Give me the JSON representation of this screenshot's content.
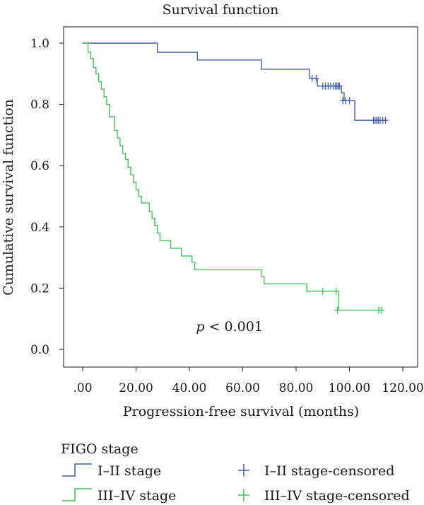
{
  "chart_data": {
    "type": "line",
    "title": "Survival function",
    "xlabel": "Progression-free survival (months)",
    "ylabel": "Cumulative survival function",
    "xlim": [
      0,
      120
    ],
    "ylim": [
      0,
      1
    ],
    "x_ticks": [
      ".00",
      "20.00",
      "40.00",
      "60.00",
      "80.00",
      "100.00",
      "120.00"
    ],
    "x_tick_values": [
      0,
      20,
      40,
      60,
      80,
      100,
      120
    ],
    "y_ticks": [
      "0.0",
      "0.2",
      "0.4",
      "0.6",
      "0.8",
      "1.0"
    ],
    "y_tick_values": [
      0,
      0.2,
      0.4,
      0.6,
      0.8,
      1.0
    ],
    "grid": false,
    "annotation": {
      "p": "p",
      "rest": " < 0.001",
      "x": 55,
      "y": 0.06
    },
    "legend": {
      "title": "FIGO stage",
      "position": "bottom",
      "items": [
        {
          "label": "I–II stage",
          "kind": "step",
          "color": "#3f5fa8"
        },
        {
          "label": "I–II stage-censored",
          "kind": "censor",
          "color": "#3f5fa8"
        },
        {
          "label": "III–IV stage",
          "kind": "step",
          "color": "#44c15a"
        },
        {
          "label": "III–IV stage-censored",
          "kind": "censor",
          "color": "#44c15a"
        }
      ]
    },
    "series": [
      {
        "name": "I–II stage",
        "color": "#3f5fa8",
        "steps": [
          [
            0,
            1.0
          ],
          [
            28,
            0.97
          ],
          [
            43,
            0.945
          ],
          [
            67,
            0.915
          ],
          [
            85,
            0.885
          ],
          [
            88,
            0.86
          ],
          [
            97,
            0.838
          ],
          [
            98,
            0.812
          ],
          [
            102,
            0.748
          ],
          [
            114,
            0.748
          ]
        ],
        "censored": [
          [
            86,
            0.885
          ],
          [
            87.5,
            0.885
          ],
          [
            90,
            0.86
          ],
          [
            91,
            0.86
          ],
          [
            92,
            0.86
          ],
          [
            93,
            0.86
          ],
          [
            94,
            0.86
          ],
          [
            94.7,
            0.86
          ],
          [
            95.3,
            0.86
          ],
          [
            95.8,
            0.86
          ],
          [
            96.3,
            0.86
          ],
          [
            97.5,
            0.812
          ],
          [
            98.5,
            0.812
          ],
          [
            100,
            0.812
          ],
          [
            109,
            0.748
          ],
          [
            109.6,
            0.748
          ],
          [
            110.2,
            0.748
          ],
          [
            110.8,
            0.748
          ],
          [
            111.5,
            0.748
          ],
          [
            112.5,
            0.748
          ],
          [
            113.5,
            0.748
          ]
        ]
      },
      {
        "name": "III–IV stage",
        "color": "#44c15a",
        "steps": [
          [
            0,
            1.0
          ],
          [
            2,
            0.97
          ],
          [
            3,
            0.95
          ],
          [
            4,
            0.92
          ],
          [
            5,
            0.9
          ],
          [
            6,
            0.875
          ],
          [
            7,
            0.85
          ],
          [
            8,
            0.825
          ],
          [
            9,
            0.8
          ],
          [
            10,
            0.76
          ],
          [
            12,
            0.715
          ],
          [
            13,
            0.69
          ],
          [
            14,
            0.665
          ],
          [
            15,
            0.64
          ],
          [
            16,
            0.62
          ],
          [
            17,
            0.595
          ],
          [
            18,
            0.57
          ],
          [
            19,
            0.545
          ],
          [
            20,
            0.52
          ],
          [
            21,
            0.5
          ],
          [
            22,
            0.478
          ],
          [
            25,
            0.45
          ],
          [
            26,
            0.428
          ],
          [
            27,
            0.405
          ],
          [
            28,
            0.38
          ],
          [
            29,
            0.355
          ],
          [
            33,
            0.33
          ],
          [
            37,
            0.305
          ],
          [
            41,
            0.285
          ],
          [
            42,
            0.26
          ],
          [
            67,
            0.238
          ],
          [
            68,
            0.214
          ],
          [
            84,
            0.19
          ],
          [
            96,
            0.128
          ],
          [
            112,
            0.128
          ]
        ],
        "censored": [
          [
            90,
            0.19
          ],
          [
            95,
            0.19
          ],
          [
            95.5,
            0.128
          ],
          [
            111,
            0.128
          ],
          [
            112,
            0.128
          ]
        ]
      }
    ]
  }
}
